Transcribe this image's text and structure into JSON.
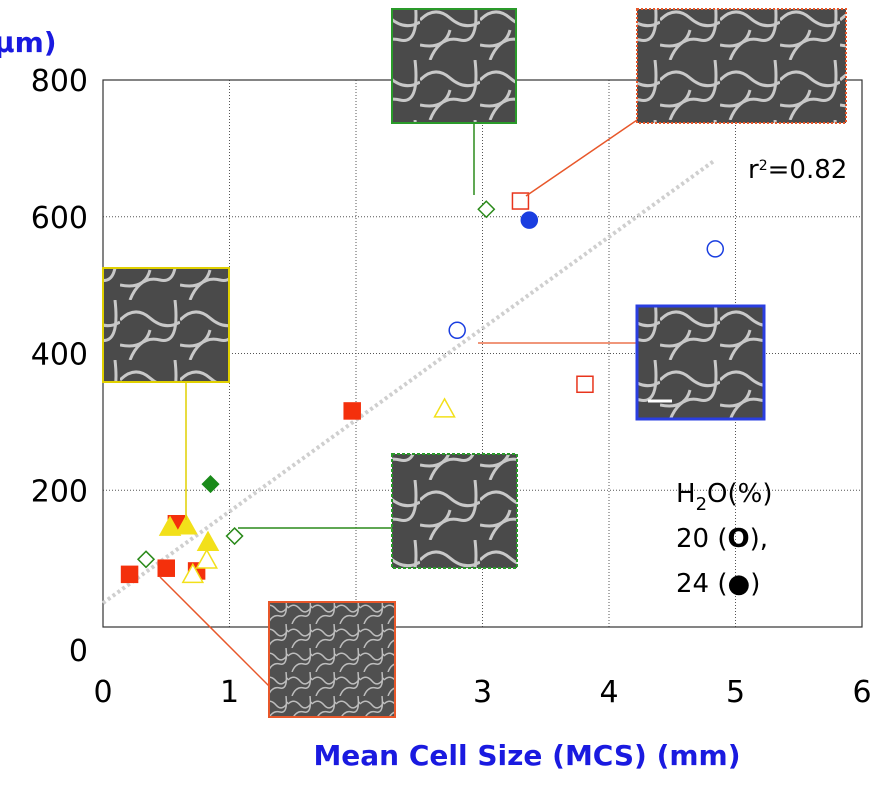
{
  "chart_data": {
    "type": "scatter",
    "y_label": "μm)",
    "x_label": "Mean Cell Size (MCS) (mm)",
    "xlim": [
      0,
      6
    ],
    "xticks": [
      0,
      1,
      2,
      3,
      4,
      5,
      6
    ],
    "ylim": [
      0,
      800
    ],
    "yticks": [
      0,
      200,
      400,
      600,
      800
    ],
    "grid": true,
    "series": [
      {
        "marker": "square",
        "filled": false,
        "color": "#e8341c",
        "x": [
          3.3,
          3.81
        ],
        "y": [
          623,
          355
        ]
      },
      {
        "marker": "square",
        "filled": true,
        "color": "#f4300c",
        "x": [
          1.97,
          0.21,
          0.5,
          0.74,
          0.58
        ],
        "y": [
          316,
          77,
          86,
          82,
          151
        ]
      },
      {
        "marker": "circle",
        "filled": false,
        "color": "#1a3ee0",
        "x": [
          2.8,
          4.84
        ],
        "y": [
          434,
          553
        ]
      },
      {
        "marker": "circle",
        "filled": true,
        "color": "#1a3ee0",
        "x": [
          3.37
        ],
        "y": [
          595
        ]
      },
      {
        "marker": "diamond",
        "filled": false,
        "color": "#2a8a1a",
        "x": [
          3.03,
          1.04,
          0.34
        ],
        "y": [
          611,
          133,
          99
        ]
      },
      {
        "marker": "diamond",
        "filled": true,
        "color": "#1a8a1a",
        "x": [
          0.85
        ],
        "y": [
          209
        ]
      },
      {
        "marker": "triangle",
        "filled": false,
        "color": "#f2e01a",
        "x": [
          2.7,
          0.71,
          0.82
        ],
        "y": [
          319,
          77,
          98
        ]
      },
      {
        "marker": "triangle",
        "filled": true,
        "color": "#f2e01a",
        "x": [
          0.53,
          0.66,
          0.83
        ],
        "y": [
          146,
          148,
          124
        ]
      }
    ],
    "fit_line": {
      "x": [
        0,
        4.84
      ],
      "y": [
        35,
        683
      ],
      "color": "#cfcfcf"
    },
    "annotations": {
      "r2": [
        "r",
        "2",
        "=0.82"
      ],
      "legend_title": [
        "H",
        "2",
        "O(%)"
      ],
      "legend_open": [
        "20 (",
        "O",
        "),"
      ],
      "legend_filled": [
        "24 (",
        "●",
        ")"
      ]
    }
  }
}
